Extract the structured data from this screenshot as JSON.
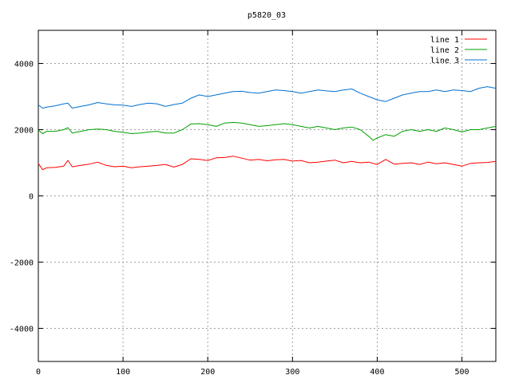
{
  "chart_data": {
    "type": "line",
    "title": "p5820_03",
    "xlabel": "",
    "ylabel": "",
    "xlim": [
      0,
      540
    ],
    "ylim": [
      -5000,
      5000
    ],
    "x_ticks": [
      0,
      100,
      200,
      300,
      400,
      500
    ],
    "y_ticks": [
      -4000,
      -2000,
      0,
      2000,
      4000
    ],
    "grid": true,
    "legend_position": "top-right",
    "series": [
      {
        "name": "line 1",
        "color": "#ff0000",
        "x": [
          0,
          5,
          10,
          20,
          30,
          35,
          40,
          50,
          60,
          70,
          80,
          90,
          100,
          110,
          120,
          130,
          140,
          150,
          160,
          170,
          180,
          190,
          200,
          210,
          220,
          230,
          240,
          250,
          260,
          270,
          280,
          290,
          300,
          310,
          320,
          330,
          340,
          350,
          360,
          370,
          380,
          390,
          400,
          410,
          420,
          430,
          440,
          450,
          460,
          470,
          480,
          490,
          500,
          510,
          520,
          530,
          540
        ],
        "y": [
          980,
          790,
          850,
          860,
          900,
          1070,
          880,
          920,
          960,
          1020,
          920,
          880,
          900,
          850,
          880,
          900,
          920,
          950,
          870,
          950,
          1120,
          1100,
          1070,
          1150,
          1160,
          1200,
          1140,
          1080,
          1100,
          1060,
          1090,
          1100,
          1050,
          1070,
          1000,
          1020,
          1050,
          1080,
          1000,
          1040,
          1000,
          1020,
          950,
          1100,
          960,
          980,
          1000,
          950,
          1020,
          970,
          1000,
          950,
          900,
          980,
          1000,
          1010,
          1040
        ]
      },
      {
        "name": "line 2",
        "color": "#00a000",
        "x": [
          0,
          5,
          10,
          20,
          30,
          35,
          40,
          50,
          60,
          70,
          80,
          90,
          100,
          110,
          120,
          130,
          140,
          150,
          160,
          170,
          180,
          190,
          200,
          210,
          220,
          230,
          240,
          250,
          260,
          270,
          280,
          290,
          300,
          310,
          320,
          330,
          340,
          350,
          360,
          370,
          380,
          390,
          395,
          400,
          410,
          420,
          430,
          440,
          450,
          460,
          470,
          480,
          490,
          500,
          510,
          520,
          530,
          540
        ],
        "y": [
          1990,
          1880,
          1950,
          1950,
          2000,
          2060,
          1900,
          1950,
          2000,
          2020,
          2000,
          1950,
          1920,
          1880,
          1900,
          1930,
          1950,
          1900,
          1900,
          2000,
          2170,
          2180,
          2150,
          2100,
          2200,
          2220,
          2200,
          2150,
          2100,
          2120,
          2150,
          2180,
          2150,
          2100,
          2050,
          2100,
          2050,
          2000,
          2050,
          2080,
          2000,
          1800,
          1680,
          1750,
          1850,
          1800,
          1950,
          2000,
          1950,
          2000,
          1950,
          2050,
          2000,
          1930,
          2000,
          2000,
          2050,
          2100
        ]
      },
      {
        "name": "line 3",
        "color": "#0070d0",
        "x": [
          0,
          5,
          10,
          20,
          30,
          35,
          40,
          50,
          60,
          70,
          80,
          90,
          100,
          110,
          120,
          130,
          140,
          150,
          160,
          170,
          180,
          190,
          200,
          210,
          220,
          230,
          240,
          250,
          260,
          270,
          280,
          290,
          300,
          310,
          320,
          330,
          340,
          350,
          360,
          370,
          380,
          390,
          400,
          410,
          420,
          430,
          440,
          450,
          460,
          470,
          480,
          490,
          500,
          510,
          520,
          530,
          540
        ],
        "y": [
          2750,
          2650,
          2680,
          2720,
          2780,
          2800,
          2650,
          2700,
          2750,
          2820,
          2780,
          2750,
          2740,
          2700,
          2760,
          2800,
          2780,
          2700,
          2760,
          2800,
          2950,
          3050,
          3000,
          3050,
          3100,
          3150,
          3160,
          3120,
          3100,
          3150,
          3200,
          3180,
          3150,
          3100,
          3150,
          3200,
          3170,
          3150,
          3200,
          3230,
          3100,
          3000,
          2900,
          2850,
          2950,
          3050,
          3100,
          3150,
          3150,
          3200,
          3150,
          3200,
          3180,
          3150,
          3250,
          3300,
          3250
        ]
      }
    ]
  }
}
